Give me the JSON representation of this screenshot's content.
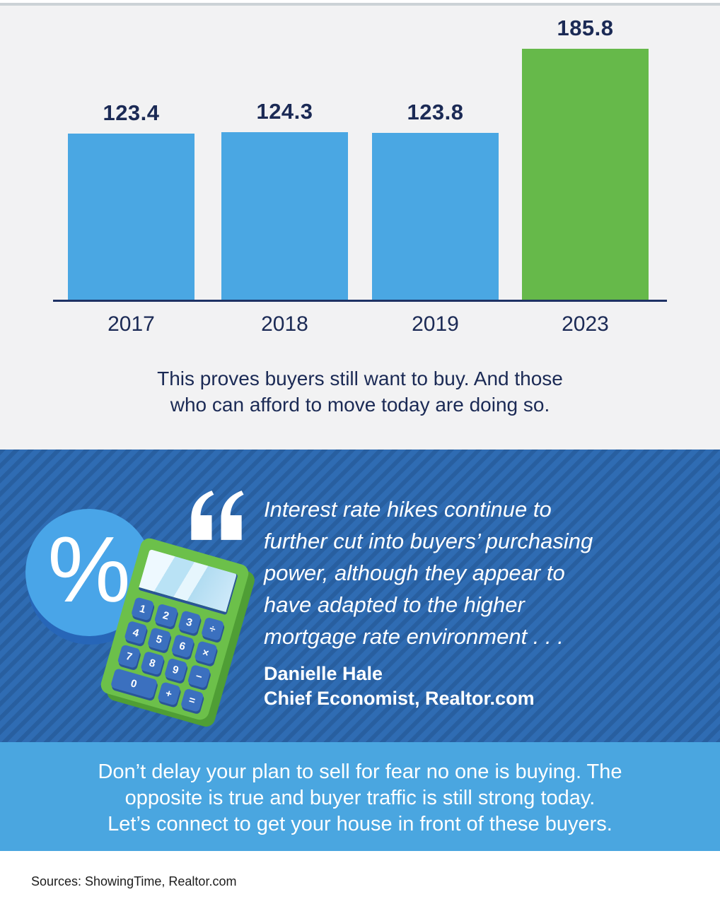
{
  "chart_data": {
    "type": "bar",
    "categories": [
      "2017",
      "2018",
      "2019",
      "2023"
    ],
    "values": [
      123.4,
      124.3,
      123.8,
      185.8
    ],
    "value_labels": [
      "123.4",
      "124.3",
      "123.8",
      "185.8"
    ],
    "bar_colors": [
      "#4aa7e3",
      "#4aa7e3",
      "#4aa7e3",
      "#66b94a"
    ],
    "title": "",
    "xlabel": "",
    "ylabel": "",
    "ylim": [
      0,
      195
    ],
    "grid": false,
    "legend": false
  },
  "chart_caption": {
    "line1": "This proves buyers still want to buy. And those",
    "line2": "who can afford to move today are doing so."
  },
  "quote": {
    "percent_symbol": "%",
    "lines": [
      "Interest rate hikes continue to",
      "further cut into buyers’ purchasing",
      "power, although they appear to",
      "have adapted to the higher",
      "mortgage rate environment . . ."
    ],
    "author": "Danielle Hale",
    "role": "Chief Economist, Realtor.com"
  },
  "calculator": {
    "keys": [
      "1",
      "2",
      "3",
      "÷",
      "4",
      "5",
      "6",
      "×",
      "7",
      "8",
      "9",
      "−",
      "0",
      "+",
      "="
    ]
  },
  "cta": {
    "lines": [
      "Don’t delay your plan to sell for fear no one is buying. The",
      "opposite is true and buyer traffic is still strong today.",
      "Let’s connect to get your house in front of these buyers."
    ]
  },
  "footer": {
    "sources": "Sources: ShowingTime, Realtor.com"
  },
  "colors": {
    "bar_blue": "#4aa7e3",
    "bar_green": "#66b94a",
    "navy_text": "#1b2a55",
    "axis_navy": "#1e3264",
    "chart_bg": "#f2f2f3",
    "top_border": "#ccd2d6",
    "quote_bg": "#2f6cb3",
    "quote_stripe": "#29619f",
    "cta_bg": "#4aa6e0",
    "calculator_green": "#6cc04a",
    "calculator_green_dark": "#4f9e35",
    "key_blue": "#3b70bf",
    "screen_blue": "#cfeafa",
    "percent_circle": "#49a5e8",
    "percent_shadow": "#2766b8",
    "text_white": "#ffffff",
    "source_text": "#1c1c1c"
  }
}
